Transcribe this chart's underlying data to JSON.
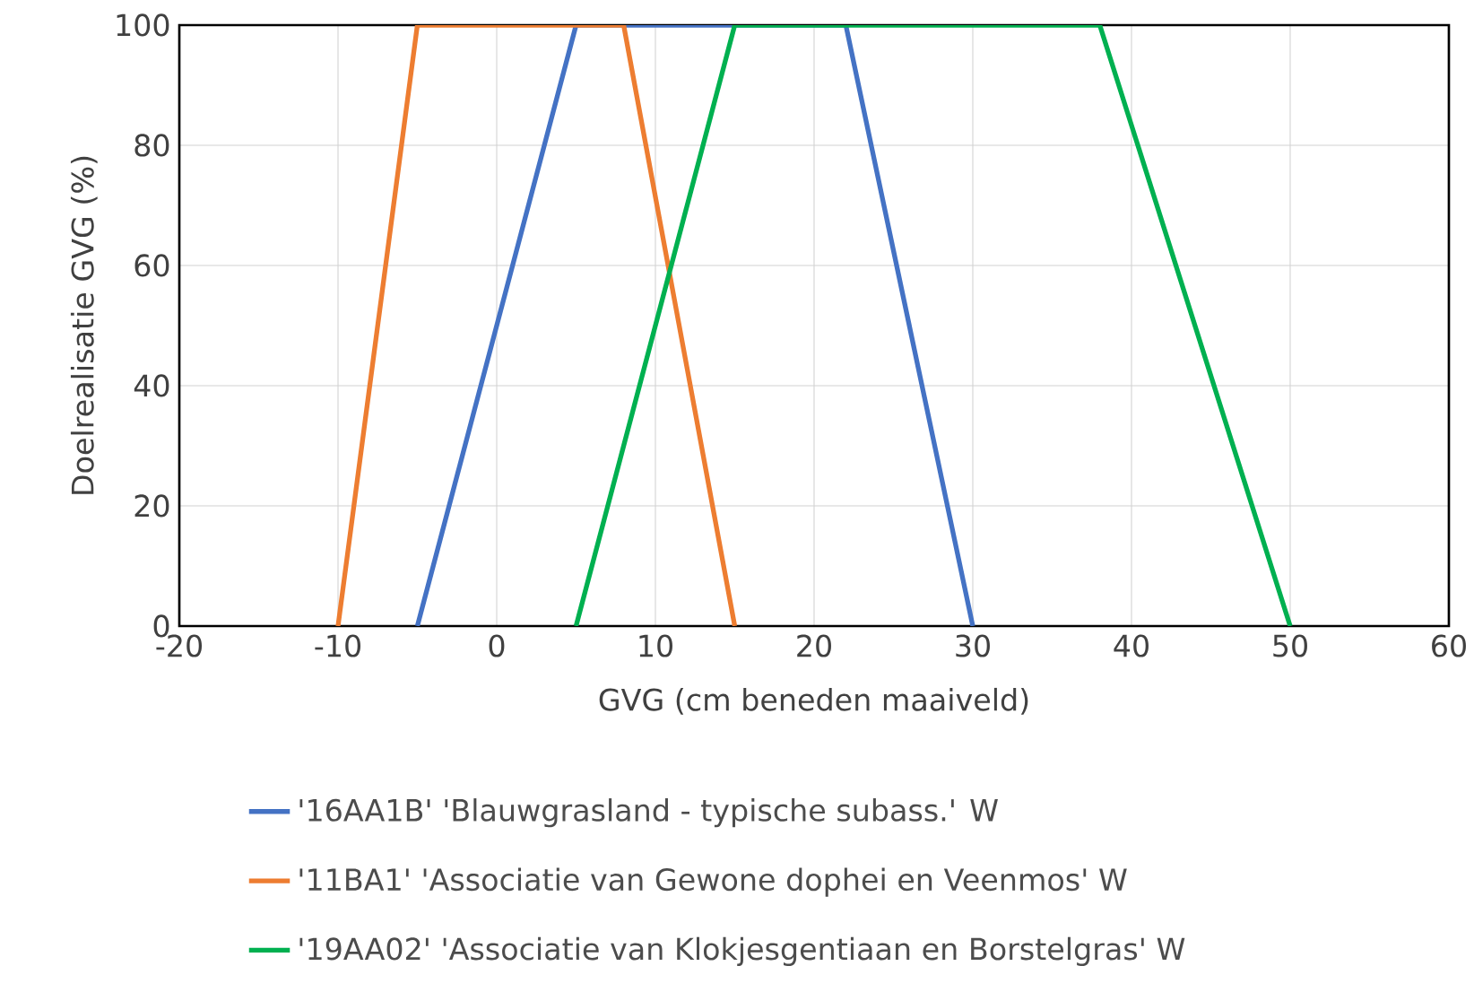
{
  "chart_data": {
    "type": "line",
    "xlabel": "GVG (cm beneden maaiveld)",
    "ylabel": "Doelrealisatie GVG (%)",
    "xlim": [
      -20,
      60
    ],
    "xticks": [
      -20,
      -10,
      0,
      10,
      20,
      30,
      40,
      50,
      60
    ],
    "ylim": [
      0,
      100
    ],
    "yticks": [
      0,
      20,
      40,
      60,
      80,
      100
    ],
    "grid": true,
    "legend": "bottom",
    "marker": "none",
    "line_style": "solid",
    "series": [
      {
        "name": "'16AA1B' 'Blauwgrasland - typische subass.'  W",
        "color": "#4472c4",
        "x": [
          -5,
          5,
          22,
          30
        ],
        "values": [
          0,
          100,
          100,
          0
        ]
      },
      {
        "name": "'11BA1' 'Associatie van Gewone dophei en Veenmos'  W",
        "color": "#ed7d31",
        "x": [
          -10,
          -5,
          8,
          15
        ],
        "values": [
          0,
          100,
          100,
          0
        ]
      },
      {
        "name": "'19AA02' 'Associatie van Klokjesgentiaan en Borstelgras'  W",
        "color": "#00b050",
        "x": [
          5,
          15,
          38,
          50
        ],
        "values": [
          0,
          100,
          100,
          0
        ]
      }
    ]
  }
}
